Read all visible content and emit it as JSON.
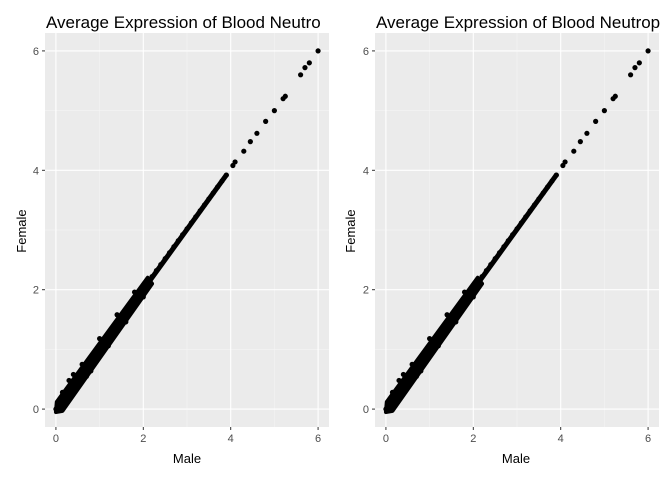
{
  "chart_data": [
    {
      "type": "scatter",
      "title": "Average Expression of Blood Neutro",
      "xlabel": "Male",
      "ylabel": "Female",
      "xlim": [
        -0.25,
        6.25
      ],
      "ylim": [
        -0.3,
        6.3
      ],
      "x_ticks": [
        0,
        2,
        4,
        6
      ],
      "y_ticks": [
        0,
        2,
        4,
        6
      ],
      "x_tick_labels": [
        "0",
        "2",
        "4",
        "6"
      ],
      "y_tick_labels": [
        "0",
        "2",
        "4",
        "6"
      ],
      "grid": true,
      "background": "#ebebeb",
      "point_color": "#000000",
      "points": [
        [
          0.0,
          0.0
        ],
        [
          0.05,
          0.04
        ],
        [
          0.1,
          0.12
        ],
        [
          0.15,
          0.16
        ],
        [
          0.2,
          0.22
        ],
        [
          0.25,
          0.28
        ],
        [
          0.3,
          0.3
        ],
        [
          0.35,
          0.36
        ],
        [
          0.4,
          0.42
        ],
        [
          0.45,
          0.46
        ],
        [
          0.5,
          0.52
        ],
        [
          0.55,
          0.56
        ],
        [
          0.6,
          0.62
        ],
        [
          0.7,
          0.72
        ],
        [
          0.8,
          0.82
        ],
        [
          0.9,
          0.92
        ],
        [
          1.0,
          1.02
        ],
        [
          1.1,
          1.12
        ],
        [
          1.2,
          1.22
        ],
        [
          1.3,
          1.32
        ],
        [
          1.4,
          1.42
        ],
        [
          1.5,
          1.52
        ],
        [
          1.6,
          1.62
        ],
        [
          1.7,
          1.72
        ],
        [
          1.8,
          1.82
        ],
        [
          1.9,
          1.92
        ],
        [
          2.0,
          2.02
        ],
        [
          2.1,
          2.12
        ],
        [
          2.2,
          2.22
        ],
        [
          2.3,
          2.32
        ],
        [
          2.4,
          2.42
        ],
        [
          2.5,
          2.52
        ],
        [
          2.6,
          2.62
        ],
        [
          2.7,
          2.72
        ],
        [
          2.8,
          2.82
        ],
        [
          2.9,
          2.92
        ],
        [
          3.0,
          3.02
        ],
        [
          3.1,
          3.12
        ],
        [
          3.2,
          3.22
        ],
        [
          3.3,
          3.32
        ],
        [
          3.4,
          3.42
        ],
        [
          3.5,
          3.52
        ],
        [
          3.6,
          3.62
        ],
        [
          3.7,
          3.72
        ],
        [
          3.8,
          3.82
        ],
        [
          3.9,
          3.92
        ],
        [
          4.05,
          4.08
        ],
        [
          4.1,
          4.14
        ],
        [
          4.3,
          4.32
        ],
        [
          4.45,
          4.48
        ],
        [
          4.6,
          4.62
        ],
        [
          4.8,
          4.82
        ],
        [
          5.0,
          5.0
        ],
        [
          5.2,
          5.2
        ],
        [
          5.25,
          5.24
        ],
        [
          5.6,
          5.6
        ],
        [
          5.7,
          5.72
        ],
        [
          5.8,
          5.8
        ],
        [
          6.0,
          6.0
        ],
        [
          0.3,
          0.48
        ],
        [
          0.5,
          0.36
        ],
        [
          0.6,
          0.75
        ],
        [
          0.8,
          0.64
        ],
        [
          1.0,
          1.18
        ],
        [
          1.2,
          1.06
        ],
        [
          1.4,
          1.58
        ],
        [
          1.6,
          1.46
        ],
        [
          1.8,
          1.96
        ],
        [
          2.0,
          1.88
        ],
        [
          0.15,
          0.28
        ],
        [
          0.25,
          0.12
        ],
        [
          0.4,
          0.58
        ],
        [
          0.7,
          0.55
        ]
      ],
      "points_2": []
    },
    {
      "type": "scatter",
      "title": "Average Expression of Blood Neutrop",
      "xlabel": "Male",
      "ylabel": "Female",
      "xlim": [
        -0.25,
        6.25
      ],
      "ylim": [
        -0.3,
        6.3
      ],
      "x_ticks": [
        0,
        2,
        4,
        6
      ],
      "y_ticks": [
        0,
        2,
        4,
        6
      ],
      "x_tick_labels": [
        "0",
        "2",
        "4",
        "6"
      ],
      "y_tick_labels": [
        "0",
        "2",
        "4",
        "6"
      ],
      "grid": true,
      "background": "#ebebeb",
      "point_color": "#000000",
      "points": [
        [
          0.0,
          0.0
        ],
        [
          0.05,
          0.04
        ],
        [
          0.1,
          0.12
        ],
        [
          0.15,
          0.16
        ],
        [
          0.2,
          0.22
        ],
        [
          0.25,
          0.28
        ],
        [
          0.3,
          0.3
        ],
        [
          0.35,
          0.36
        ],
        [
          0.4,
          0.42
        ],
        [
          0.45,
          0.46
        ],
        [
          0.5,
          0.52
        ],
        [
          0.55,
          0.56
        ],
        [
          0.6,
          0.62
        ],
        [
          0.7,
          0.72
        ],
        [
          0.8,
          0.82
        ],
        [
          0.9,
          0.92
        ],
        [
          1.0,
          1.02
        ],
        [
          1.1,
          1.12
        ],
        [
          1.2,
          1.22
        ],
        [
          1.3,
          1.32
        ],
        [
          1.4,
          1.42
        ],
        [
          1.5,
          1.52
        ],
        [
          1.6,
          1.62
        ],
        [
          1.7,
          1.72
        ],
        [
          1.8,
          1.82
        ],
        [
          1.9,
          1.92
        ],
        [
          2.0,
          2.02
        ],
        [
          2.1,
          2.12
        ],
        [
          2.2,
          2.22
        ],
        [
          2.3,
          2.32
        ],
        [
          2.4,
          2.42
        ],
        [
          2.5,
          2.52
        ],
        [
          2.6,
          2.62
        ],
        [
          2.7,
          2.72
        ],
        [
          2.8,
          2.82
        ],
        [
          2.9,
          2.92
        ],
        [
          3.0,
          3.02
        ],
        [
          3.1,
          3.12
        ],
        [
          3.2,
          3.22
        ],
        [
          3.3,
          3.32
        ],
        [
          3.4,
          3.42
        ],
        [
          3.5,
          3.52
        ],
        [
          3.6,
          3.62
        ],
        [
          3.7,
          3.72
        ],
        [
          3.8,
          3.82
        ],
        [
          3.9,
          3.92
        ],
        [
          4.05,
          4.08
        ],
        [
          4.1,
          4.14
        ],
        [
          4.3,
          4.32
        ],
        [
          4.45,
          4.48
        ],
        [
          4.6,
          4.62
        ],
        [
          4.8,
          4.82
        ],
        [
          5.0,
          5.0
        ],
        [
          5.2,
          5.2
        ],
        [
          5.25,
          5.24
        ],
        [
          5.6,
          5.6
        ],
        [
          5.7,
          5.72
        ],
        [
          5.8,
          5.8
        ],
        [
          6.0,
          6.0
        ],
        [
          0.3,
          0.48
        ],
        [
          0.5,
          0.36
        ],
        [
          0.6,
          0.75
        ],
        [
          0.8,
          0.64
        ],
        [
          1.0,
          1.18
        ],
        [
          1.2,
          1.06
        ],
        [
          1.4,
          1.58
        ],
        [
          1.6,
          1.46
        ],
        [
          1.8,
          1.96
        ],
        [
          2.0,
          1.88
        ],
        [
          0.15,
          0.28
        ],
        [
          0.25,
          0.12
        ],
        [
          0.4,
          0.58
        ],
        [
          0.7,
          0.55
        ]
      ],
      "points_2": []
    }
  ]
}
